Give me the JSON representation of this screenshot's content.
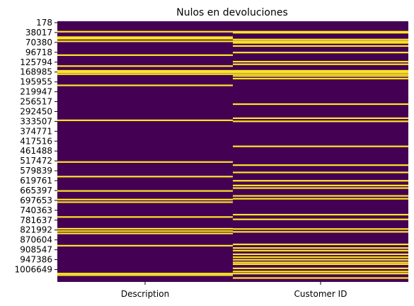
{
  "chart_data": {
    "type": "heatmap",
    "title": "Nulos en devoluciones",
    "xlabel": "",
    "ylabel": "",
    "columns": [
      "Description",
      "Customer ID"
    ],
    "y_tick_labels": [
      "178",
      "38017",
      "70380",
      "96718",
      "125794",
      "168985",
      "195955",
      "219947",
      "256517",
      "292450",
      "333507",
      "374771",
      "417516",
      "461488",
      "517472",
      "579839",
      "619761",
      "665397",
      "697653",
      "740363",
      "781637",
      "821992",
      "870604",
      "908547",
      "947386",
      "1006649"
    ],
    "value_legend": {
      "0": "not null",
      "1": "null"
    },
    "colors": {
      "not_null": "#440154",
      "null": "#fde725"
    },
    "null_positions_note": "fraction of row span (0 = top row, 1 = bottom row)",
    "null_rows": {
      "Description": [
        0.04,
        0.061,
        0.063,
        0.067,
        0.077,
        0.13,
        0.172,
        0.19,
        0.196,
        0.203,
        0.246,
        0.38,
        0.54,
        0.596,
        0.651,
        0.684,
        0.694,
        0.751,
        0.796,
        0.805,
        0.814,
        0.861,
        0.968,
        0.974
      ],
      "Customer ID": [
        0.04,
        0.044,
        0.07,
        0.077,
        0.083,
        0.095,
        0.12,
        0.155,
        0.165,
        0.19,
        0.196,
        0.203,
        0.21,
        0.22,
        0.318,
        0.372,
        0.384,
        0.48,
        0.552,
        0.58,
        0.612,
        0.63,
        0.64,
        0.67,
        0.681,
        0.742,
        0.76,
        0.797,
        0.808,
        0.856,
        0.87,
        0.88,
        0.894,
        0.905,
        0.915,
        0.925,
        0.932,
        0.948,
        0.96,
        0.968,
        0.985
      ]
    }
  }
}
